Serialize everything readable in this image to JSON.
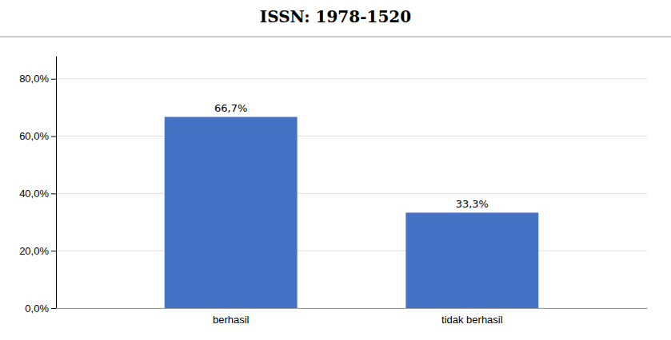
{
  "chart_data": {
    "type": "bar",
    "title": "ISSN: 1978-1520",
    "categories": [
      "berhasil",
      "tidak berhasil"
    ],
    "values": [
      66.7,
      33.3
    ],
    "value_labels": [
      "66,7%",
      "33,3%"
    ],
    "data_labels": true,
    "color": "#4472C4",
    "ylim": [
      0,
      88
    ],
    "yticks": [
      {
        "value": 0.0,
        "label": "0,0%"
      },
      {
        "value": 20.0,
        "label": "20,0%"
      },
      {
        "value": 40.0,
        "label": "40,0%"
      },
      {
        "value": 60.0,
        "label": "60,0%"
      },
      {
        "value": 80.0,
        "label": "80,0%"
      }
    ],
    "grid": true
  }
}
